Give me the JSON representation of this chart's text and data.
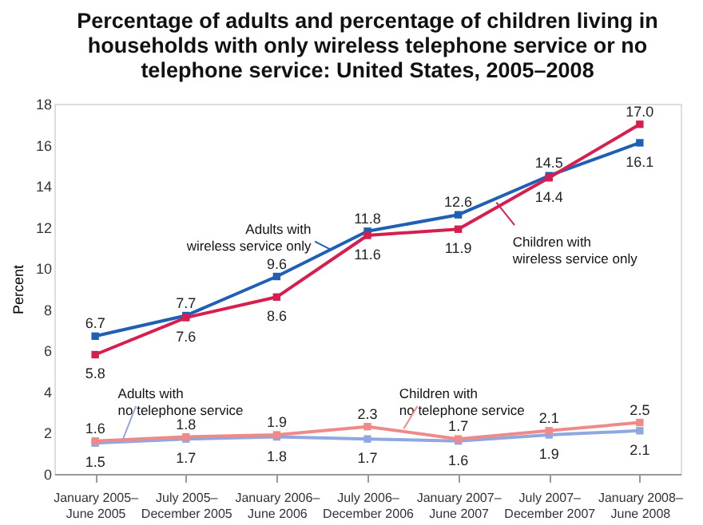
{
  "chart_data": {
    "type": "line",
    "title": "Percentage of adults and percentage of children living in households with only wireless telephone service or no telephone service: United States, 2005–2008",
    "ylabel": "Percent",
    "categories": [
      "January 2005–June 2005",
      "July 2005–December 2005",
      "January 2006–June 2006",
      "July 2006–December 2006",
      "January 2007–June 2007",
      "July 2007–December 2007",
      "January 2008–June 2008"
    ],
    "series": [
      {
        "name": "Adults with wireless service only",
        "color": "#1f5fb4",
        "values": [
          6.7,
          7.7,
          9.6,
          11.8,
          12.6,
          14.5,
          16.1
        ]
      },
      {
        "name": "Children with wireless service only",
        "color": "#d61f4e",
        "values": [
          5.8,
          7.6,
          8.6,
          11.6,
          11.9,
          14.4,
          17.0
        ],
        "value_labels": [
          "5.8",
          "7.6",
          "8.6",
          "11.6",
          "11.9",
          "14.4",
          "17.0"
        ]
      },
      {
        "name": "Adults with no telephone service",
        "color": "#8fa8e0",
        "values": [
          1.5,
          1.7,
          1.8,
          1.7,
          1.6,
          1.9,
          2.1
        ]
      },
      {
        "name": "Children with no telephone service",
        "color": "#f08a8a",
        "values": [
          1.6,
          1.8,
          1.9,
          2.3,
          1.7,
          2.1,
          2.5
        ]
      }
    ],
    "ylim": [
      0,
      18
    ],
    "yticks": [
      0,
      2,
      4,
      6,
      8,
      10,
      12,
      14,
      16,
      18
    ],
    "data_labels": true,
    "marker": "square",
    "line_style": "solid",
    "grid": false
  }
}
